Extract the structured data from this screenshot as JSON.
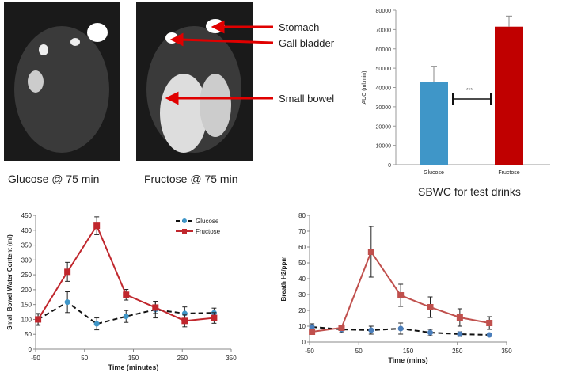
{
  "images": {
    "left_caption": "Glucose @ 75 min",
    "right_caption": "Fructose @ 75 min",
    "annotations": [
      "Stomach",
      "Gall bladder",
      "Small bowel"
    ],
    "arrow_color": "#e00000"
  },
  "chart_data": [
    {
      "type": "bar",
      "title": "SBWC for test drinks",
      "ylabel": "AUC (ml.min)",
      "categories": [
        "Glucose",
        "Fructose"
      ],
      "values": [
        43000,
        71500
      ],
      "errors": [
        8000,
        5500
      ],
      "colors": [
        "#3f96c8",
        "#c00000"
      ],
      "ylim": [
        0,
        80000
      ],
      "yticks": [
        0,
        10000,
        20000,
        30000,
        40000,
        50000,
        60000,
        70000,
        80000
      ],
      "significance": "***"
    },
    {
      "type": "line",
      "xlabel": "Time (minutes)",
      "ylabel": "Small Bowel Water Content (ml)",
      "xlim": [
        -50,
        350
      ],
      "ylim": [
        0,
        450
      ],
      "xticks": [
        -50,
        50,
        150,
        250,
        350
      ],
      "yticks": [
        0,
        50,
        100,
        150,
        200,
        250,
        300,
        350,
        400,
        450
      ],
      "legend": "top-right",
      "x": [
        -45,
        15,
        75,
        135,
        195,
        255,
        315
      ],
      "series": [
        {
          "name": "Glucose",
          "color": "#3f96c8",
          "dash": true,
          "values": [
            100,
            158,
            85,
            110,
            133,
            120,
            122
          ],
          "errors": [
            20,
            35,
            20,
            20,
            28,
            22,
            16
          ]
        },
        {
          "name": "Fructose",
          "color": "#c0272d",
          "dash": false,
          "values": [
            100,
            260,
            415,
            183,
            140,
            95,
            105
          ],
          "errors": [
            18,
            32,
            30,
            18,
            20,
            20,
            18
          ]
        }
      ]
    },
    {
      "type": "line",
      "xlabel": "Time (mins)",
      "ylabel": "Breath H2/ppm",
      "xlim": [
        -50,
        350
      ],
      "ylim": [
        0,
        80
      ],
      "xticks": [
        -50,
        50,
        150,
        250,
        350
      ],
      "yticks": [
        0,
        10,
        20,
        30,
        40,
        50,
        60,
        70,
        80
      ],
      "x": [
        -45,
        15,
        75,
        135,
        195,
        255,
        315
      ],
      "series": [
        {
          "color": "#4a7ebb",
          "dash": true,
          "values": [
            9.5,
            8,
            7.5,
            8.5,
            6,
            5,
            4.5
          ],
          "errors": [
            2,
            2,
            2.5,
            3.5,
            2,
            1.5,
            1
          ]
        },
        {
          "color": "#c0504d",
          "dash": false,
          "values": [
            6.5,
            9,
            57,
            29.5,
            22,
            15.5,
            12
          ],
          "errors": [
            1,
            1.5,
            16,
            7,
            6.5,
            5.5,
            4
          ]
        }
      ]
    }
  ]
}
